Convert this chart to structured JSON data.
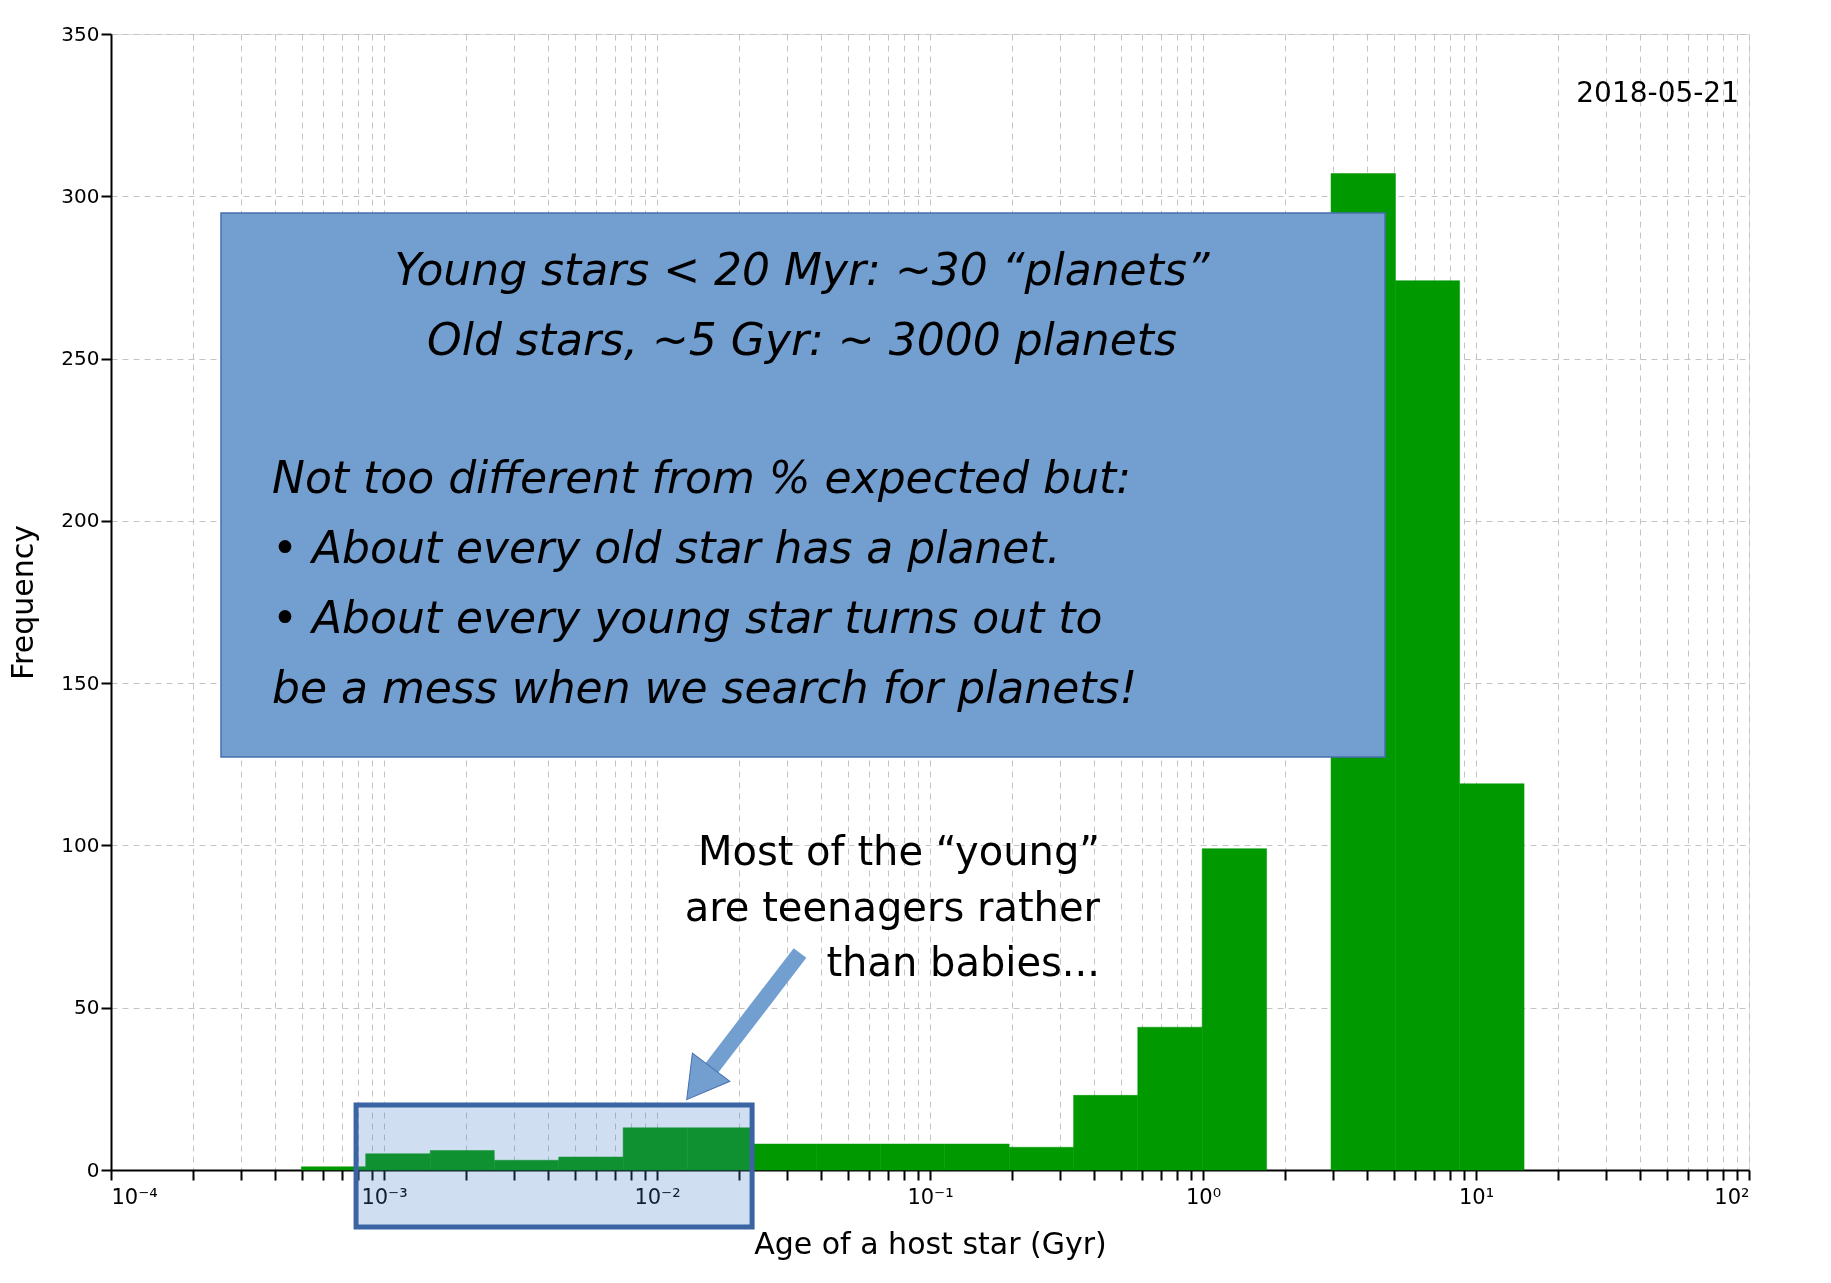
{
  "chart_data": {
    "type": "histogram",
    "xlabel": "Age of a host star (Gyr)",
    "ylabel": "Frequency",
    "bins": [
      0.000498,
      0.000857,
      0.001476,
      0.002535,
      0.004365,
      0.007516,
      0.01291,
      0.02223,
      0.03828,
      0.06592,
      0.1132,
      0.195,
      0.3357,
      0.5768,
      0.9931,
      1.71,
      2.944,
      5.07,
      8.71,
      15.0
    ],
    "values": [
      1,
      5,
      6,
      3,
      4,
      13,
      13,
      8,
      8,
      8,
      8,
      7,
      23,
      44,
      99,
      null,
      307,
      274,
      119
    ],
    "color": "#009900",
    "log": "x",
    "xlim": [
      0.0001,
      100
    ],
    "ylim": [
      0,
      350
    ],
    "xticks": [
      {
        "value": 0.0001,
        "label": "10⁻⁴"
      },
      {
        "value": 0.0002,
        "label": null
      },
      {
        "value": 0.0003,
        "label": null
      },
      {
        "value": 0.0004,
        "label": null
      },
      {
        "value": 0.0005,
        "label": null
      },
      {
        "value": 0.0006,
        "label": null
      },
      {
        "value": 0.0007,
        "label": null
      },
      {
        "value": 0.0008,
        "label": null
      },
      {
        "value": 0.0009,
        "label": null
      },
      {
        "value": 0.001,
        "label": "10⁻³"
      },
      {
        "value": 0.002,
        "label": null
      },
      {
        "value": 0.003,
        "label": null
      },
      {
        "value": 0.004,
        "label": null
      },
      {
        "value": 0.005,
        "label": null
      },
      {
        "value": 0.006,
        "label": null
      },
      {
        "value": 0.007,
        "label": null
      },
      {
        "value": 0.008,
        "label": null
      },
      {
        "value": 0.009,
        "label": null
      },
      {
        "value": 0.01,
        "label": "10⁻²"
      },
      {
        "value": 0.02,
        "label": null
      },
      {
        "value": 0.03,
        "label": null
      },
      {
        "value": 0.04,
        "label": null
      },
      {
        "value": 0.05,
        "label": null
      },
      {
        "value": 0.06,
        "label": null
      },
      {
        "value": 0.07,
        "label": null
      },
      {
        "value": 0.08,
        "label": null
      },
      {
        "value": 0.09,
        "label": null
      },
      {
        "value": 0.1,
        "label": "10⁻¹"
      },
      {
        "value": 0.2,
        "label": null
      },
      {
        "value": 0.3,
        "label": null
      },
      {
        "value": 0.4,
        "label": null
      },
      {
        "value": 0.5,
        "label": null
      },
      {
        "value": 0.6,
        "label": null
      },
      {
        "value": 0.7,
        "label": null
      },
      {
        "value": 0.8,
        "label": null
      },
      {
        "value": 0.9,
        "label": null
      },
      {
        "value": 1,
        "label": "10⁰"
      },
      {
        "value": 2,
        "label": null
      },
      {
        "value": 3,
        "label": null
      },
      {
        "value": 4,
        "label": null
      },
      {
        "value": 5,
        "label": null
      },
      {
        "value": 6,
        "label": null
      },
      {
        "value": 7,
        "label": null
      },
      {
        "value": 8,
        "label": null
      },
      {
        "value": 9,
        "label": null
      },
      {
        "value": 10,
        "label": "10¹"
      },
      {
        "value": 20,
        "label": null
      },
      {
        "value": 30,
        "label": null
      },
      {
        "value": 40,
        "label": null
      },
      {
        "value": 50,
        "label": null
      },
      {
        "value": 60,
        "label": null
      },
      {
        "value": 70,
        "label": null
      },
      {
        "value": 80,
        "label": null
      },
      {
        "value": 90,
        "label": null
      },
      {
        "value": 100,
        "label": "10²"
      }
    ],
    "yticks": [
      0,
      50,
      100,
      150,
      200,
      250,
      300,
      350
    ],
    "grid": true,
    "bands": [
      {
        "axis": "x",
        "from": 0.00079,
        "to": 0.0223,
        "color": "#3f7bc4"
      }
    ],
    "annotations": [
      "2018-05-21",
      "Young stars < 20 Myr: ~30 “planets”",
      "Old stars, ~5 Gyr: ~ 3000 planets",
      "Not too different from % expected but:",
      "• About every old star has a planet.",
      "• About every young star turns out to",
      "be a mess when we search for planets!",
      "Most of the “young”",
      "are teenagers rather",
      "than babies..."
    ]
  }
}
